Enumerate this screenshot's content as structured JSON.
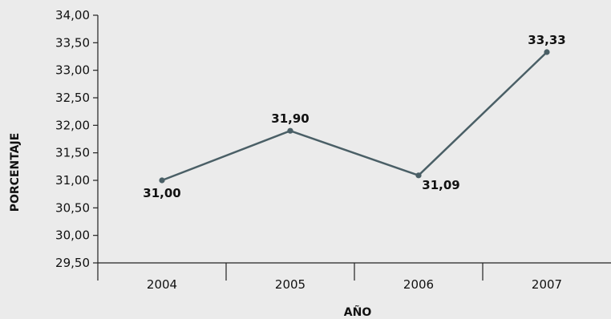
{
  "chart_data": {
    "type": "line",
    "xlabel": "AÑO",
    "ylabel": "PORCENTAJE",
    "categories": [
      "2004",
      "2005",
      "2006",
      "2007"
    ],
    "series": [
      {
        "values": [
          31.0,
          31.9,
          31.09,
          33.33
        ],
        "labels": [
          "31,00",
          "31,90",
          "31,09",
          "33,33"
        ]
      }
    ],
    "ylim": [
      29.5,
      34.0
    ],
    "yticks": [
      "34,00",
      "33,50",
      "33,00",
      "32,50",
      "32,00",
      "31,50",
      "31,00",
      "30,50",
      "30,00",
      "29,50"
    ],
    "grid": false,
    "legend": "none",
    "colors": {
      "line": "#4a5f66",
      "axis": "#222222",
      "background": "#ebebeb"
    }
  }
}
